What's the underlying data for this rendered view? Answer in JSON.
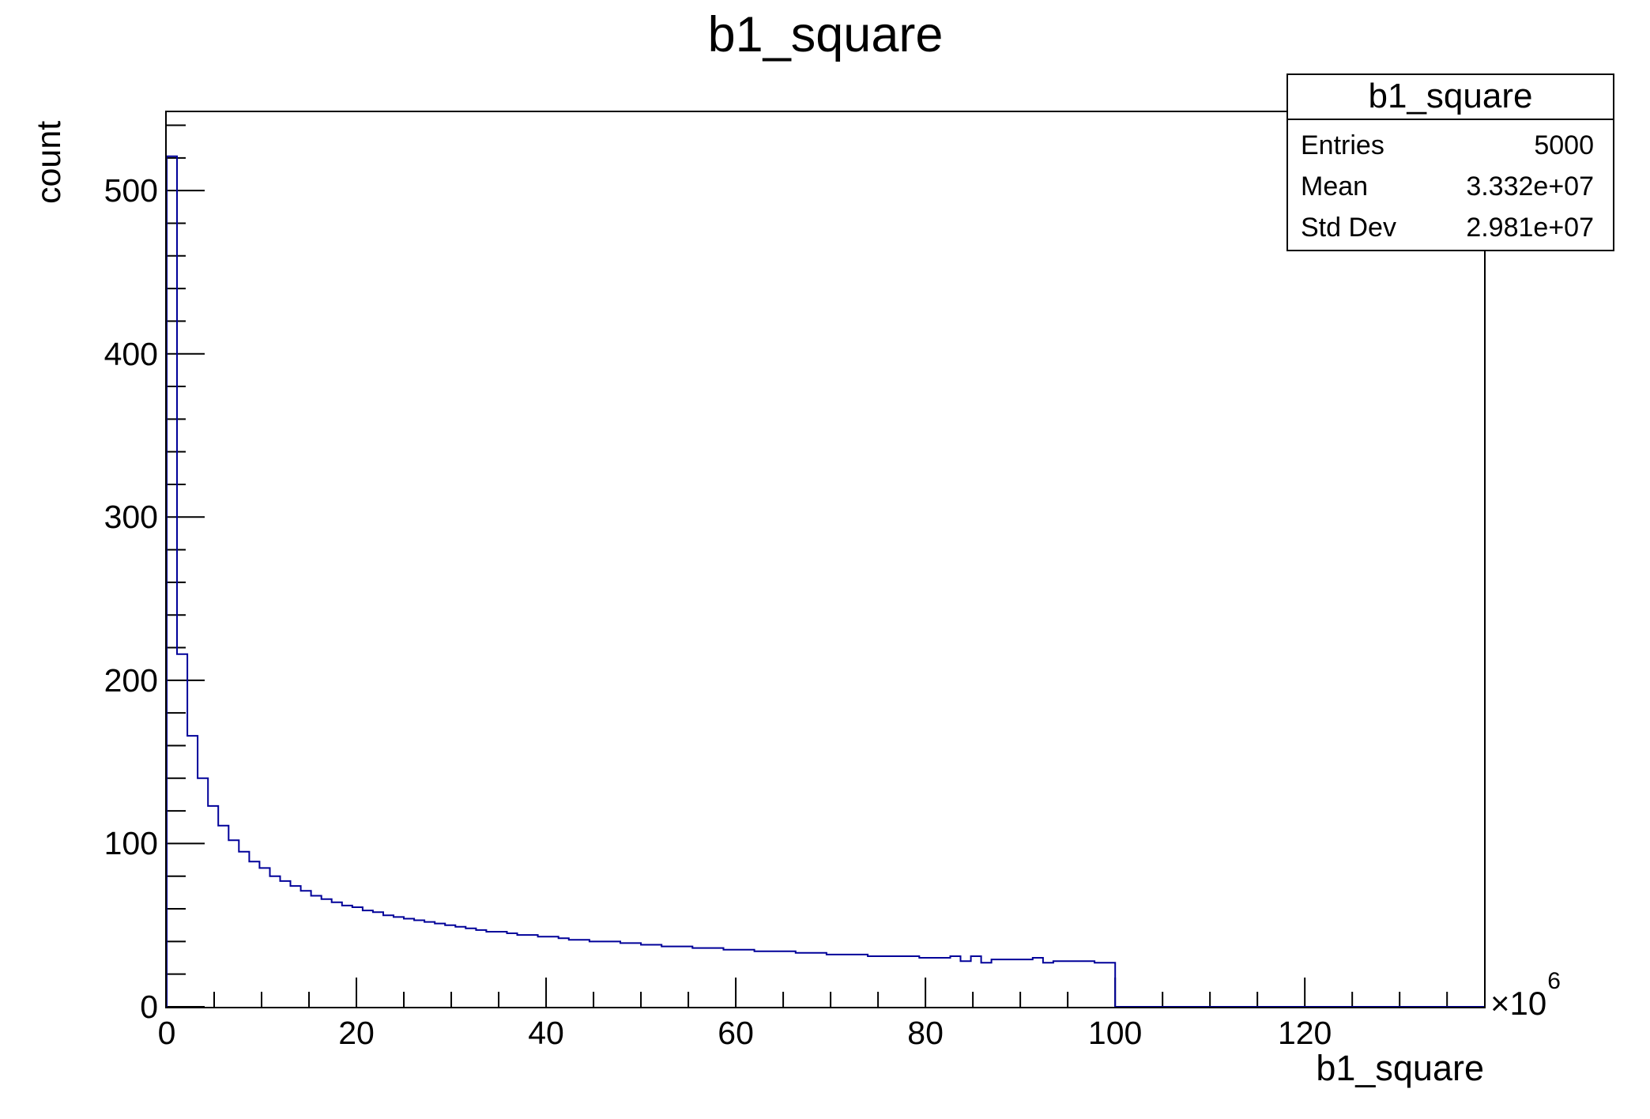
{
  "page_title": "b1_square",
  "stats_box": {
    "title": "b1_square",
    "rows": [
      {
        "label": "Entries",
        "value": "5000"
      },
      {
        "label": "Mean",
        "value": "3.332e+07"
      },
      {
        "label": "Std Dev",
        "value": "2.981e+07"
      }
    ]
  },
  "chart_data": {
    "type": "bar",
    "variant": "root-step-histogram-outline",
    "title": "b1_square",
    "xlabel": "b1_square",
    "ylabel": "count",
    "x_unit_multiplier_base": "×10",
    "x_unit_multiplier_exponent": "6",
    "entries": 5000,
    "mean": 33320000.0,
    "std_dev": 29810000.0,
    "xlim": [
      0,
      138900000
    ],
    "ylim": [
      0,
      548
    ],
    "xlim_e6": [
      0,
      138.9
    ],
    "x_major_ticks": [
      0,
      20,
      40,
      60,
      80,
      100,
      120
    ],
    "x_major_step": 20,
    "x_minor_step": 5,
    "y_major_ticks": [
      0,
      100,
      200,
      300,
      400,
      500
    ],
    "y_major_step": 100,
    "y_minor_step": 20,
    "grid": false,
    "legend": "none",
    "line_color": "#000099",
    "axis_color": "#000000",
    "bin_width_e6": 1.087,
    "bin_start_e6": 0,
    "counts": [
      521,
      216,
      166,
      140,
      123,
      111,
      102,
      95,
      89,
      85,
      80,
      77,
      74,
      71,
      68,
      66,
      64,
      62,
      61,
      59,
      58,
      56,
      55,
      54,
      53,
      52,
      51,
      50,
      49,
      48,
      47,
      46,
      46,
      45,
      44,
      44,
      43,
      43,
      42,
      41,
      41,
      40,
      40,
      40,
      39,
      39,
      38,
      38,
      37,
      37,
      37,
      36,
      36,
      36,
      35,
      35,
      35,
      34,
      34,
      34,
      34,
      33,
      33,
      33,
      32,
      32,
      32,
      32,
      31,
      31,
      31,
      31,
      31,
      30,
      30,
      30,
      31,
      28,
      31,
      27,
      29,
      29,
      29,
      29,
      30,
      27,
      28,
      28,
      28,
      28,
      27,
      27
    ]
  }
}
